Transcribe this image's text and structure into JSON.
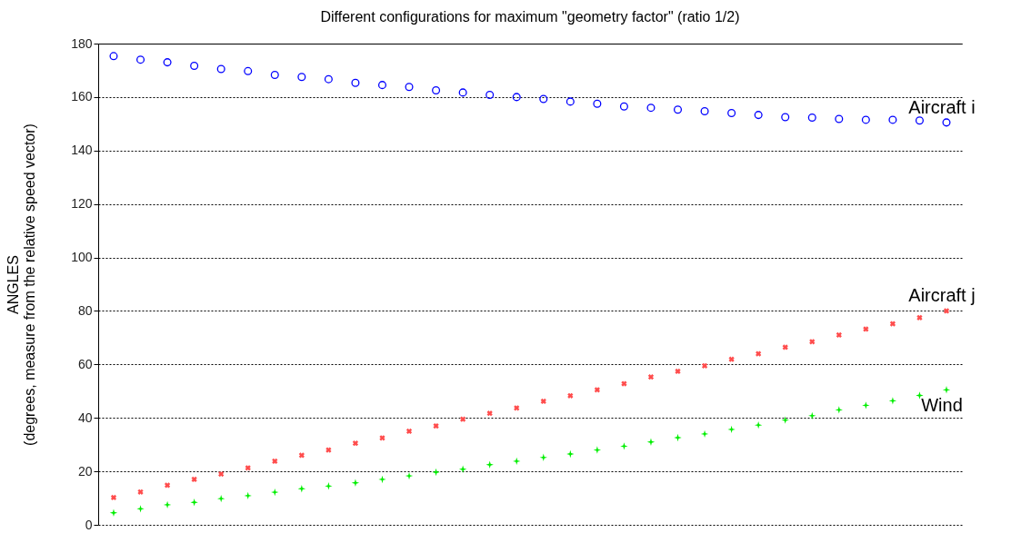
{
  "chart_data": {
    "type": "scatter",
    "title": "Different configurations for maximum \"geometry factor\" (ratio 1/2)",
    "ylabel": "ANGLES\n(degrees, measure from the relative speed vector)",
    "categories": [
      null,
      null,
      null,
      null,
      null,
      null,
      null,
      null,
      null,
      null,
      null,
      null,
      null,
      null,
      null,
      null,
      null,
      null,
      null,
      null,
      null,
      null,
      null,
      null,
      null,
      null,
      null,
      null,
      null,
      null,
      null,
      null
    ],
    "series": [
      {
        "name": "Aircraft i",
        "color": "#0000ff",
        "marker": "circle",
        "values": [
          175.3,
          174,
          173,
          171.7,
          170.5,
          169.7,
          168.3,
          167.5,
          166.7,
          165.3,
          164.5,
          163.8,
          162.5,
          161.7,
          160.8,
          160,
          159.3,
          158.3,
          157.5,
          156.5,
          156,
          155.3,
          154.7,
          154,
          153.3,
          152.5,
          152.3,
          151.8,
          151.5,
          151.5,
          151.2,
          150.5
        ]
      },
      {
        "name": "Aircraft j",
        "color": "#ff4d4d",
        "marker": "cross",
        "values": [
          10.2,
          12.3,
          14.8,
          17,
          19,
          21.3,
          23.8,
          26,
          28,
          30.5,
          32.5,
          35,
          37,
          39.5,
          41.7,
          43.7,
          46.2,
          48.3,
          50.5,
          52.8,
          55.3,
          57.4,
          59.5,
          61.9,
          64,
          66.4,
          68.5,
          71,
          73.2,
          75.2,
          77.5,
          80
        ]
      },
      {
        "name": "Wind",
        "color": "#00ee00",
        "marker": "star",
        "values": [
          4.5,
          6,
          7.5,
          8.4,
          9.8,
          10.9,
          12.2,
          13.5,
          14.5,
          15.7,
          17,
          18.3,
          19.7,
          20.8,
          22.5,
          23.8,
          25.2,
          26.5,
          28,
          29.4,
          31,
          32.6,
          34,
          35.7,
          37.3,
          39.2,
          40.8,
          43,
          44.7,
          46.4,
          48.4,
          50.5
        ]
      }
    ],
    "ylim": [
      0,
      180
    ],
    "yticks": [
      0,
      20,
      40,
      60,
      80,
      100,
      120,
      140,
      160,
      180
    ],
    "grid": "y",
    "line_style": "dotted",
    "tick_labels": "y",
    "legend": false
  }
}
